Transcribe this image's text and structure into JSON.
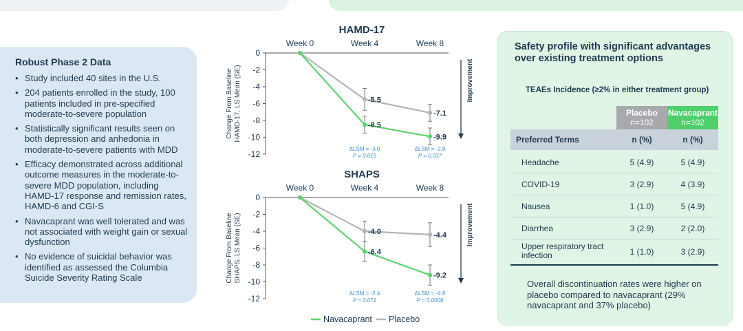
{
  "left_panel": {
    "title": "Robust Phase 2 Data",
    "bullets": [
      "Study included 40 sites in the U.S.",
      "204 patients enrolled in the study, 100 patients included in pre-specified moderate-to-severe population",
      "Statistically significant results seen on both depression and anhedonia in moderate-to-severe patients with MDD",
      "Efficacy demonstrated across additional outcome measures in the moderate-to-severe MDD population, including HAMD-17 response and remission rates, HAMD-6 and CGI-S",
      "Navacaprant was well tolerated and was not associated with weight gain or sexual dysfunction",
      "No evidence of suicidal behavior was identified as assessed the Columbia Suicide Severity Rating Scale"
    ]
  },
  "chart_data": [
    {
      "type": "line",
      "title": "HAMD-17",
      "x": [
        "Week 0",
        "Week 4",
        "Week 8"
      ],
      "ylabel": "Change From Baseline HAMD-17, LS Mean (SE)",
      "ylim": [
        -12,
        0
      ],
      "yticks": [
        0,
        -2,
        -4,
        -6,
        -8,
        -10,
        -12
      ],
      "series": [
        {
          "name": "Navacaprant",
          "values": [
            0,
            -8.5,
            -9.9
          ],
          "labels": [
            "",
            "-8.5",
            "-9.9"
          ],
          "err": [
            0,
            1.0,
            1.0
          ]
        },
        {
          "name": "Placebo",
          "values": [
            0,
            -5.5,
            -7.1
          ],
          "labels": [
            "",
            "-5.5",
            "-7.1"
          ],
          "err": [
            0,
            1.3,
            1.0
          ]
        }
      ],
      "annotations": [
        {
          "x": "Week 4",
          "line1": "ΔLSM = -3.0",
          "line2": "P = 0.015"
        },
        {
          "x": "Week 8",
          "line1": "ΔLSM = -2.8",
          "line2": "P = 0.037"
        }
      ],
      "improvement_label": "Improvement"
    },
    {
      "type": "line",
      "title": "SHAPS",
      "x": [
        "Week 0",
        "Week 4",
        "Week 8"
      ],
      "ylabel": "Change From Baseline SHAPS, LS Mean (SE)",
      "ylim": [
        -12,
        0
      ],
      "yticks": [
        0,
        -2,
        -4,
        -6,
        -8,
        -10,
        -12
      ],
      "series": [
        {
          "name": "Navacaprant",
          "values": [
            0,
            -6.4,
            -9.2
          ],
          "labels": [
            "",
            "-6.4",
            "-9.2"
          ],
          "err": [
            0,
            1.2,
            1.2
          ]
        },
        {
          "name": "Placebo",
          "values": [
            0,
            -4.0,
            -4.4
          ],
          "labels": [
            "",
            "-4.0",
            "-4.4"
          ],
          "err": [
            0,
            1.2,
            1.4
          ]
        }
      ],
      "annotations": [
        {
          "x": "Week 4",
          "line1": "ΔLSM = -2.4",
          "line2": "P = 0.071"
        },
        {
          "x": "Week 8",
          "line1": "ΔLSM = -4.8",
          "line2": "P = 0.0006"
        }
      ],
      "improvement_label": "Improvement"
    }
  ],
  "legend": {
    "navacaprant": "Navacaprant",
    "placebo": "Placebo"
  },
  "colors": {
    "navacaprant": "#5ed36f",
    "placebo": "#b4b4b4",
    "annotation": "#3d8fd6",
    "text": "#1f3a52"
  },
  "right_panel": {
    "title": "Safety profile with significant advantages over existing treatment options",
    "table_caption": "TEAEs Incidence (≥2% in either treatment group)",
    "col_placebo": "Placebo",
    "col_placebo_n": "n=102",
    "col_nava": "Navacaprant",
    "col_nava_n": "n=102",
    "row_header": {
      "term": "Preferred Terms",
      "c1": "n (%)",
      "c2": "n (%)"
    },
    "rows": [
      {
        "term": "Headache",
        "placebo": "5 (4.9)",
        "nava": "5 (4.9)"
      },
      {
        "term": "COVID-19",
        "placebo": "3 (2.9)",
        "nava": "4 (3.9)"
      },
      {
        "term": "Nausea",
        "placebo": "1 (1.0)",
        "nava": "5 (4.9)"
      },
      {
        "term": "Diarrhea",
        "placebo": "3 (2.9)",
        "nava": "2 (2.0)"
      },
      {
        "term": "Upper respiratory tract infection",
        "placebo": "1 (1.0)",
        "nava": "3 (2.9)"
      }
    ],
    "footnote": "Overall discontinuation rates were higher on placebo compared to navacaprant (29% navacaprant and 37% placebo)"
  }
}
